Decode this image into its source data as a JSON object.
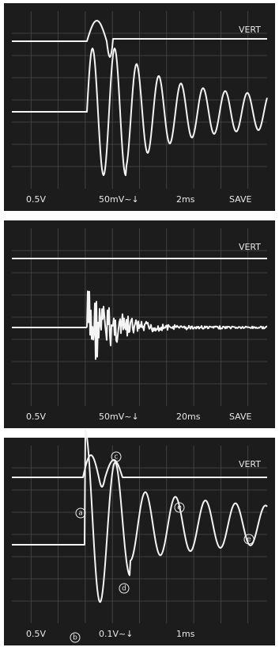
{
  "panels": [
    {
      "top_label": "VERT",
      "readouts": [
        "0.5V",
        "50mV~↓",
        "2ms",
        "SAVE"
      ]
    },
    {
      "top_label": "VERT",
      "readouts": [
        "0.5V",
        "50mV~↓",
        "20ms",
        "SAVE"
      ]
    },
    {
      "top_label": "VERT",
      "readouts": [
        "0.5V",
        "0.1V~↓",
        "1ms"
      ],
      "markers": [
        "a",
        "b",
        "c",
        "d",
        "e",
        "e"
      ]
    }
  ]
}
